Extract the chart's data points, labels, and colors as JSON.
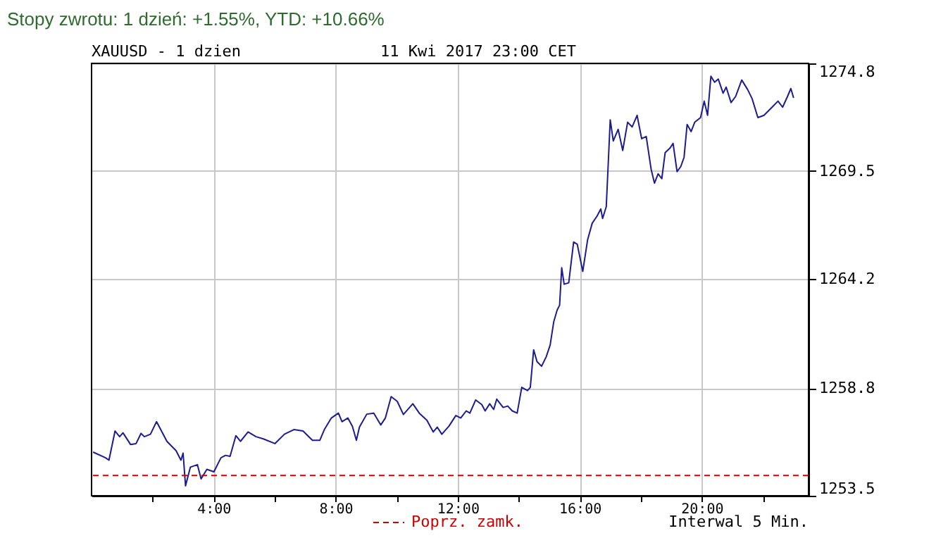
{
  "chart_data": {
    "type": "line",
    "title": "Stopy zwrotu: 1 dzień: +1.55%, YTD: +10.66%",
    "subtitle": "XAUUSD - 1 dzien",
    "annotations": [
      "11 Kwi 2017 23:00 CET",
      "Interwal 5 Min."
    ],
    "xlim": [
      0,
      23.5
    ],
    "ylim": [
      1253.5,
      1274.8
    ],
    "xticks": [
      {
        "value": 2,
        "label": null
      },
      {
        "value": 4,
        "label": "4:00"
      },
      {
        "value": 6,
        "label": null
      },
      {
        "value": 8,
        "label": "8:00"
      },
      {
        "value": 10,
        "label": null
      },
      {
        "value": 12,
        "label": "12:00"
      },
      {
        "value": 14,
        "label": null
      },
      {
        "value": 16,
        "label": "16:00"
      },
      {
        "value": 18,
        "label": null
      },
      {
        "value": 20,
        "label": "20:00"
      },
      {
        "value": 22,
        "label": null
      }
    ],
    "yticks": [
      1253.5,
      1258.8,
      1264.2,
      1269.5,
      1274.8
    ],
    "grid": true,
    "marker": "none",
    "line_style": "solid",
    "ref_lines": [
      {
        "axis": "y",
        "value": 1254.5,
        "label": "Poprz. zamk.",
        "color": "#cc0000",
        "line_style": "dashed"
      }
    ],
    "series": [
      {
        "color": "#1c1c8f",
        "x": [
          0.05,
          0.46,
          0.57,
          0.77,
          0.92,
          1.03,
          1.28,
          1.46,
          1.62,
          1.73,
          1.93,
          2.13,
          2.47,
          2.77,
          2.93,
          3.0,
          3.08,
          3.24,
          3.47,
          3.59,
          3.78,
          4.01,
          4.24,
          4.39,
          4.54,
          4.73,
          4.88,
          5.13,
          5.39,
          5.63,
          6.01,
          6.32,
          6.63,
          6.93,
          7.24,
          7.48,
          7.63,
          7.86,
          8.09,
          8.21,
          8.4,
          8.55,
          8.68,
          8.78,
          9.02,
          9.25,
          9.48,
          9.63,
          9.82,
          10.02,
          10.22,
          10.53,
          10.74,
          10.99,
          11.2,
          11.33,
          11.48,
          11.71,
          11.94,
          12.1,
          12.28,
          12.4,
          12.59,
          12.79,
          12.9,
          13.05,
          13.18,
          13.28,
          13.49,
          13.64,
          13.79,
          13.95,
          14.1,
          14.29,
          14.38,
          14.49,
          14.6,
          14.75,
          14.9,
          15.03,
          15.15,
          15.26,
          15.34,
          15.41,
          15.49,
          15.64,
          15.8,
          15.92,
          16.1,
          16.26,
          16.41,
          16.57,
          16.69,
          16.75,
          16.87,
          17.0,
          17.1,
          17.26,
          17.41,
          17.57,
          17.72,
          17.88,
          18.03,
          18.18,
          18.34,
          18.45,
          18.57,
          18.69,
          18.8,
          18.96,
          19.06,
          19.19,
          19.31,
          19.42,
          19.52,
          19.65,
          19.77,
          19.96,
          20.08,
          20.19,
          20.3,
          20.42,
          20.54,
          20.7,
          20.8,
          20.96,
          21.11,
          21.31,
          21.5,
          21.65,
          21.84,
          22.04,
          22.27,
          22.5,
          22.65,
          22.81,
          22.92,
          23.01
        ],
        "values": [
          1255.65,
          1255.37,
          1255.25,
          1256.69,
          1256.41,
          1256.6,
          1256.02,
          1256.07,
          1256.57,
          1256.41,
          1256.53,
          1257.15,
          1256.18,
          1255.72,
          1255.25,
          1255.6,
          1253.99,
          1254.91,
          1255.03,
          1254.33,
          1254.8,
          1254.68,
          1255.37,
          1255.49,
          1255.44,
          1256.46,
          1256.18,
          1256.64,
          1256.41,
          1256.3,
          1256.07,
          1256.53,
          1256.76,
          1256.69,
          1256.23,
          1256.23,
          1256.76,
          1257.33,
          1257.57,
          1257.15,
          1257.33,
          1256.92,
          1256.23,
          1256.88,
          1257.52,
          1257.57,
          1256.99,
          1257.33,
          1258.38,
          1258.15,
          1257.5,
          1258.03,
          1257.57,
          1257.22,
          1256.64,
          1256.88,
          1256.53,
          1256.92,
          1257.45,
          1257.33,
          1257.68,
          1257.57,
          1258.22,
          1257.99,
          1257.68,
          1258.03,
          1257.75,
          1258.26,
          1257.85,
          1257.92,
          1257.68,
          1257.57,
          1258.84,
          1258.68,
          1258.84,
          1260.69,
          1260.11,
          1259.88,
          1260.34,
          1260.92,
          1262.08,
          1262.65,
          1262.88,
          1264.73,
          1263.92,
          1263.99,
          1266.0,
          1265.89,
          1264.55,
          1266.12,
          1266.93,
          1267.28,
          1267.63,
          1267.16,
          1267.74,
          1272.02,
          1270.98,
          1271.55,
          1270.51,
          1271.9,
          1271.67,
          1272.24,
          1271.09,
          1271.2,
          1269.59,
          1268.9,
          1269.36,
          1269.12,
          1270.4,
          1270.63,
          1270.86,
          1269.47,
          1269.71,
          1270.17,
          1271.79,
          1271.44,
          1271.9,
          1272.13,
          1272.94,
          1272.24,
          1274.17,
          1273.87,
          1274.03,
          1273.33,
          1273.63,
          1272.87,
          1273.17,
          1273.98,
          1273.52,
          1273.06,
          1272.13,
          1272.24,
          1272.59,
          1272.94,
          1272.64,
          1273.17,
          1273.56,
          1273.1
        ]
      }
    ]
  }
}
